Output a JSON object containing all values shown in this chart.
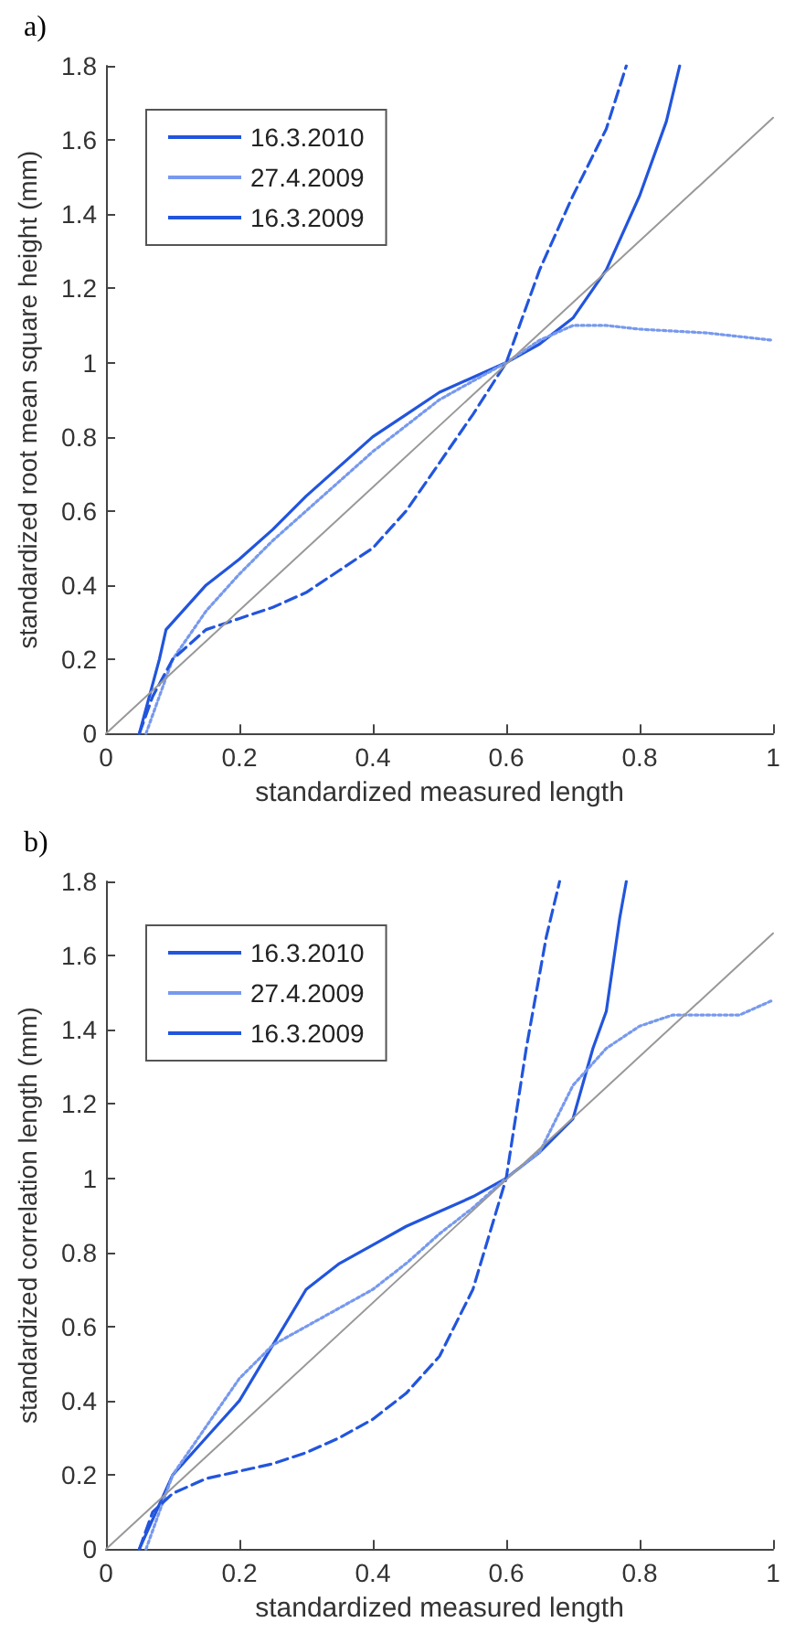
{
  "chart_data": [
    {
      "type": "line",
      "title": "a)",
      "xlabel": "standardized measured length",
      "ylabel": "standardized root mean square height (mm)",
      "xlim": [
        0,
        1
      ],
      "ylim": [
        0,
        1.8
      ],
      "xticks": [
        0,
        0.2,
        0.4,
        0.6,
        0.8,
        1
      ],
      "yticks": [
        0,
        0.2,
        0.4,
        0.6,
        0.8,
        1,
        1.2,
        1.4,
        1.6,
        1.8
      ],
      "grid": false,
      "legend": "top left",
      "marker": "none",
      "series": [
        {
          "name": "16.3.2010",
          "color": "#2255dd",
          "line_style": "solid",
          "x": [
            0.05,
            0.08,
            0.09,
            0.15,
            0.2,
            0.25,
            0.3,
            0.35,
            0.4,
            0.45,
            0.5,
            0.55,
            0.6,
            0.65,
            0.7,
            0.75,
            0.8,
            0.84,
            0.86
          ],
          "values": [
            0,
            0.2,
            0.28,
            0.4,
            0.47,
            0.55,
            0.64,
            0.72,
            0.8,
            0.86,
            0.92,
            0.96,
            1.0,
            1.05,
            1.12,
            1.25,
            1.45,
            1.65,
            1.8
          ]
        },
        {
          "name": "27.4.2009",
          "color": "#7799ee",
          "line_style": "dotted",
          "x": [
            0.06,
            0.08,
            0.1,
            0.15,
            0.2,
            0.25,
            0.3,
            0.35,
            0.4,
            0.45,
            0.5,
            0.55,
            0.6,
            0.65,
            0.7,
            0.75,
            0.8,
            0.9,
            1.0
          ],
          "values": [
            0,
            0.1,
            0.2,
            0.33,
            0.43,
            0.52,
            0.6,
            0.68,
            0.76,
            0.83,
            0.9,
            0.95,
            1.0,
            1.06,
            1.1,
            1.1,
            1.09,
            1.08,
            1.06
          ]
        },
        {
          "name": "16.3.2009",
          "color": "#2255dd",
          "line_style": "dashed",
          "x": [
            0.05,
            0.07,
            0.1,
            0.15,
            0.2,
            0.25,
            0.3,
            0.35,
            0.4,
            0.45,
            0.5,
            0.55,
            0.6,
            0.65,
            0.7,
            0.75,
            0.78
          ],
          "values": [
            0,
            0.1,
            0.2,
            0.28,
            0.31,
            0.34,
            0.38,
            0.44,
            0.5,
            0.6,
            0.73,
            0.86,
            1.0,
            1.25,
            1.45,
            1.63,
            1.8
          ]
        },
        {
          "color": "#999999",
          "line_style": "solid",
          "x": [
            0,
            1
          ],
          "values": [
            0,
            1.66
          ]
        }
      ]
    },
    {
      "type": "line",
      "title": "b)",
      "xlabel": "standardized measured length",
      "ylabel": "standardized correlation length (mm)",
      "xlim": [
        0,
        1
      ],
      "ylim": [
        0,
        1.8
      ],
      "xticks": [
        0,
        0.2,
        0.4,
        0.6,
        0.8,
        1
      ],
      "yticks": [
        0,
        0.2,
        0.4,
        0.6,
        0.8,
        1,
        1.2,
        1.4,
        1.6,
        1.8
      ],
      "grid": false,
      "legend": "top left",
      "marker": "none",
      "series": [
        {
          "name": "16.3.2010",
          "color": "#2255dd",
          "line_style": "solid",
          "x": [
            0.05,
            0.08,
            0.1,
            0.15,
            0.2,
            0.25,
            0.3,
            0.35,
            0.4,
            0.45,
            0.5,
            0.55,
            0.6,
            0.65,
            0.7,
            0.73,
            0.75,
            0.77,
            0.78
          ],
          "values": [
            0,
            0.12,
            0.2,
            0.3,
            0.4,
            0.55,
            0.7,
            0.77,
            0.82,
            0.87,
            0.91,
            0.95,
            1.0,
            1.07,
            1.16,
            1.35,
            1.45,
            1.7,
            1.8
          ]
        },
        {
          "name": "27.4.2009",
          "color": "#7799ee",
          "line_style": "dotted",
          "x": [
            0.06,
            0.1,
            0.15,
            0.2,
            0.25,
            0.3,
            0.35,
            0.4,
            0.45,
            0.5,
            0.55,
            0.6,
            0.65,
            0.7,
            0.75,
            0.8,
            0.85,
            0.9,
            0.95,
            1.0
          ],
          "values": [
            0,
            0.2,
            0.33,
            0.46,
            0.55,
            0.6,
            0.65,
            0.7,
            0.77,
            0.85,
            0.92,
            1.0,
            1.07,
            1.25,
            1.35,
            1.41,
            1.44,
            1.44,
            1.44,
            1.48
          ]
        },
        {
          "name": "16.3.2009",
          "color": "#2255dd",
          "line_style": "dashed",
          "x": [
            0.05,
            0.07,
            0.1,
            0.15,
            0.2,
            0.25,
            0.3,
            0.35,
            0.4,
            0.45,
            0.5,
            0.55,
            0.58,
            0.6,
            0.63,
            0.66,
            0.68
          ],
          "values": [
            0,
            0.1,
            0.15,
            0.19,
            0.21,
            0.23,
            0.26,
            0.3,
            0.35,
            0.42,
            0.52,
            0.7,
            0.88,
            1.0,
            1.35,
            1.65,
            1.8
          ]
        },
        {
          "color": "#999999",
          "line_style": "solid",
          "x": [
            0,
            1
          ],
          "values": [
            0,
            1.66
          ]
        }
      ]
    }
  ]
}
